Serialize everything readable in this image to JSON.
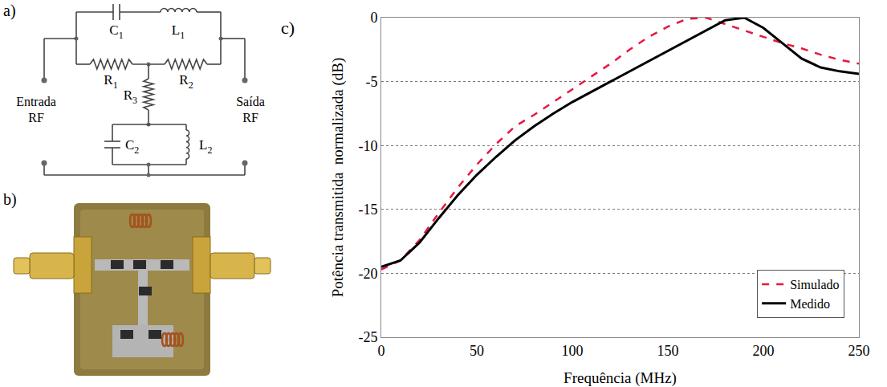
{
  "panel_labels": [
    "a)",
    "b)",
    "c)"
  ],
  "circuit": {
    "components": [
      {
        "label": "C",
        "sub": "1"
      },
      {
        "label": "L",
        "sub": "1"
      },
      {
        "label": "R",
        "sub": "1"
      },
      {
        "label": "R",
        "sub": "2"
      },
      {
        "label": "R",
        "sub": "3"
      },
      {
        "label": "C",
        "sub": "2"
      },
      {
        "label": "L",
        "sub": "2"
      }
    ],
    "input": "Entrada RF",
    "output": "Saída RF"
  },
  "chart_data": {
    "type": "line",
    "x_label": "Frequência (MHz)",
    "y_label": "Potência transmitida  normalizada (dB)",
    "x": [
      0,
      10,
      20,
      30,
      40,
      50,
      60,
      70,
      80,
      90,
      100,
      110,
      120,
      130,
      140,
      150,
      160,
      170,
      180,
      190,
      200,
      210,
      220,
      230,
      240,
      250
    ],
    "series": [
      {
        "name": "Simulado",
        "color": "#e8173f",
        "line_style": "dashed",
        "values": [
          -19.7,
          -19.0,
          -17.4,
          -15.3,
          -13.3,
          -11.5,
          -9.9,
          -8.5,
          -7.6,
          -6.6,
          -5.6,
          -4.6,
          -3.6,
          -2.5,
          -1.5,
          -0.7,
          -0.1,
          0,
          -0.5,
          -1.0,
          -1.5,
          -2.0,
          -2.4,
          -2.9,
          -3.3,
          -3.6
        ]
      },
      {
        "name": "Medido",
        "color": "#000000",
        "line_style": "solid",
        "values": [
          -19.5,
          -19.0,
          -17.6,
          -15.7,
          -13.9,
          -12.3,
          -10.9,
          -9.6,
          -8.5,
          -7.5,
          -6.6,
          -5.8,
          -5.0,
          -4.2,
          -3.4,
          -2.6,
          -1.8,
          -1.0,
          -0.2,
          0,
          -0.8,
          -2.0,
          -3.2,
          -3.9,
          -4.2,
          -4.4
        ]
      }
    ],
    "xlim": [
      0,
      250
    ],
    "xticks": [
      0,
      50,
      100,
      150,
      200,
      250
    ],
    "ylim": [
      -25,
      0
    ],
    "yticks": [
      -25,
      -20,
      -15,
      -10,
      -5,
      0
    ],
    "grid": true,
    "legend": "bottom right"
  }
}
